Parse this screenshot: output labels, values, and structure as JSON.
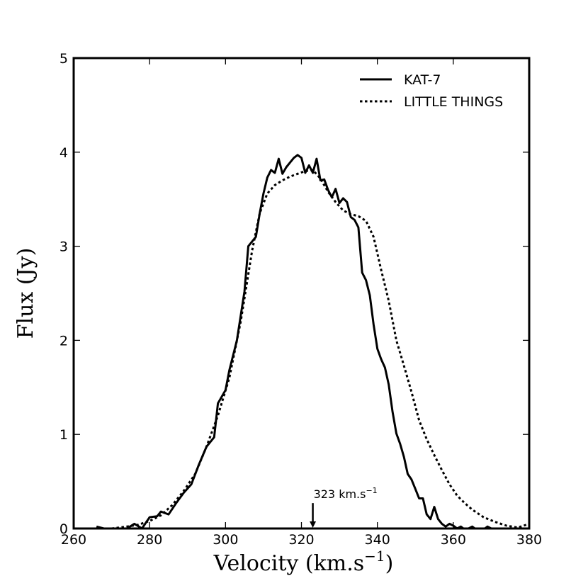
{
  "chart_data": {
    "type": "line",
    "title": "",
    "xlabel": "Velocity (km.s",
    "xlabel_sup": "−1",
    "xlabel_close": ")",
    "ylabel": "Flux (Jy)",
    "xlim": [
      260,
      380
    ],
    "ylim": [
      0,
      5
    ],
    "xticks": [
      260,
      280,
      300,
      320,
      340,
      360,
      380
    ],
    "yticks": [
      0,
      1,
      2,
      3,
      4,
      5
    ],
    "grid": false,
    "legend_position": "top-right",
    "series": [
      {
        "name": "KAT-7",
        "style": "solid",
        "color": "#000000",
        "x": [
          266,
          270,
          274,
          276,
          278,
          280,
          282,
          283,
          285,
          287,
          289,
          291,
          293,
          295,
          297,
          298,
          300,
          301,
          303,
          305,
          306,
          308,
          309,
          310,
          311,
          312,
          313,
          314,
          315,
          316,
          317,
          318,
          319,
          320,
          321,
          322,
          323,
          324,
          325,
          326,
          327,
          328,
          329,
          330,
          331,
          332,
          333,
          334,
          335,
          336,
          337,
          338,
          339,
          340,
          341,
          342,
          343,
          344,
          345,
          346,
          347,
          348,
          349,
          350,
          351,
          352,
          353,
          354,
          355,
          356,
          357,
          358,
          359,
          360,
          361,
          362,
          363,
          364,
          365,
          366,
          367,
          368,
          369,
          370,
          372,
          374,
          376,
          378,
          380
        ],
        "y": [
          0.02,
          -0.02,
          0.0,
          0.05,
          0.0,
          0.12,
          0.13,
          0.18,
          0.15,
          0.27,
          0.38,
          0.47,
          0.68,
          0.87,
          0.97,
          1.33,
          1.47,
          1.68,
          2.0,
          2.52,
          3.0,
          3.1,
          3.35,
          3.56,
          3.73,
          3.81,
          3.78,
          3.93,
          3.77,
          3.84,
          3.89,
          3.94,
          3.97,
          3.94,
          3.78,
          3.86,
          3.78,
          3.93,
          3.7,
          3.71,
          3.6,
          3.52,
          3.61,
          3.46,
          3.51,
          3.47,
          3.31,
          3.28,
          3.2,
          2.72,
          2.64,
          2.48,
          2.17,
          1.91,
          1.8,
          1.71,
          1.53,
          1.24,
          1.01,
          0.9,
          0.76,
          0.58,
          0.52,
          0.42,
          0.32,
          0.32,
          0.15,
          0.1,
          0.23,
          0.1,
          0.05,
          0.02,
          0.05,
          0.03,
          0.0,
          0.02,
          -0.01,
          0.0,
          0.02,
          -0.01,
          -0.02,
          -0.01,
          0.02,
          0.0,
          -0.02,
          0.0,
          0.0,
          0.0,
          0.0
        ]
      },
      {
        "name": "LITTLE THINGS",
        "style": "dotted",
        "color": "#000000",
        "x": [
          270,
          274,
          277,
          280,
          283,
          286,
          289,
          292,
          295,
          298,
          301,
          304,
          307,
          309,
          311,
          313,
          315,
          317,
          319,
          321,
          323,
          325,
          327,
          329,
          331,
          333,
          335,
          337,
          339,
          341,
          343,
          345,
          347,
          349,
          351,
          353,
          355,
          357,
          359,
          361,
          363,
          365,
          368,
          371,
          374,
          377,
          380
        ],
        "y": [
          0.0,
          0.02,
          0.04,
          0.08,
          0.14,
          0.25,
          0.4,
          0.58,
          0.87,
          1.2,
          1.6,
          2.2,
          2.95,
          3.35,
          3.56,
          3.65,
          3.7,
          3.74,
          3.77,
          3.8,
          3.81,
          3.72,
          3.58,
          3.47,
          3.38,
          3.34,
          3.32,
          3.27,
          3.1,
          2.75,
          2.42,
          2.0,
          1.73,
          1.45,
          1.15,
          0.95,
          0.78,
          0.62,
          0.47,
          0.35,
          0.27,
          0.2,
          0.12,
          0.07,
          0.03,
          0.01,
          0.05
        ]
      }
    ],
    "annotations": [
      {
        "text": "323 km.s",
        "sup": "−1",
        "x": 323,
        "y_tip": 0.0,
        "y_tail": 0.27,
        "type": "arrow-down"
      }
    ]
  }
}
